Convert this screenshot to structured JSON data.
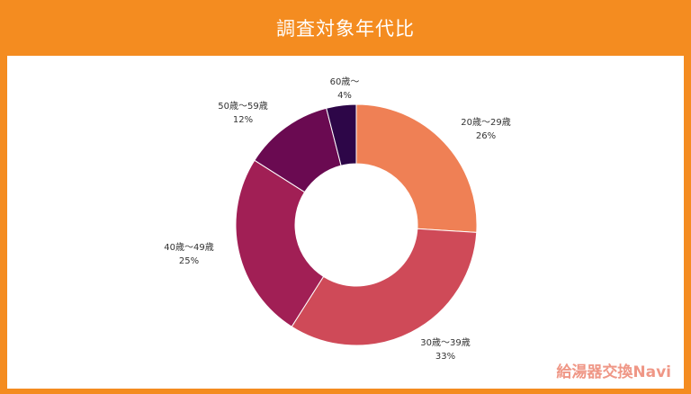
{
  "header": {
    "title": "調査対象年代比"
  },
  "brand": {
    "text": "給湯器交換Navi"
  },
  "colors": {
    "frame": "#f48c20",
    "slices": [
      "#ef8055",
      "#cf4a58",
      "#a11f55",
      "#6a0a51",
      "#2d0648"
    ]
  },
  "chart_data": {
    "type": "pie",
    "donut": true,
    "categories": [
      "20歳〜29歳",
      "30歳〜39歳",
      "40歳〜49歳",
      "50歳〜59歳",
      "60歳〜"
    ],
    "values": [
      26,
      33,
      25,
      12,
      4
    ],
    "value_labels": [
      "26%",
      "33%",
      "25%",
      "12%",
      "4%"
    ],
    "unit": "%"
  }
}
